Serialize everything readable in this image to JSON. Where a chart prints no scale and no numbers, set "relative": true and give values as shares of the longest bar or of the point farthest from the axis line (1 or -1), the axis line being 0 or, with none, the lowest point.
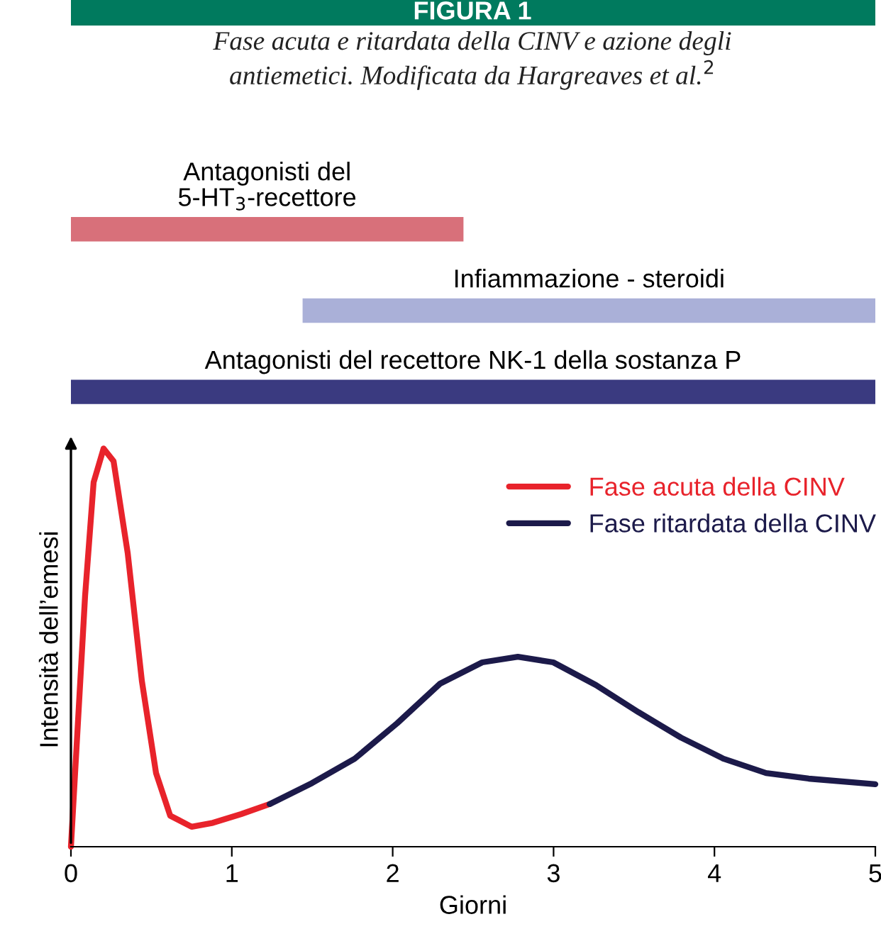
{
  "chart_data": [
    {
      "type": "bar",
      "orientation": "horizontal",
      "title": "FIGURA 1",
      "subtitle": "Fase acuta e ritardata della CINV e azione degli\nantiemetici. Modificata da Hargreaves et al.$^{2}$",
      "categories": [
        null,
        null,
        null
      ],
      "base": [
        0,
        1.44,
        0
      ],
      "values": [
        2.44,
        3.56,
        5
      ],
      "colors": [
        "#d8707a",
        "#aab0d8",
        "#3a3a80"
      ],
      "xlim": [
        0,
        5
      ],
      "tick_labels": false,
      "annotations": [
        "Antagonisti del\n5-HT$_{3}$-recettore",
        "Infiammazione - steroidi",
        "Antagonisti del recettore NK-1 della sostanza P"
      ]
    },
    {
      "type": "line",
      "xlabel": "Giorni",
      "ylabel": "Intensità dell’emesi",
      "relative": true,
      "xlim": [
        0,
        5
      ],
      "xticks": [
        0,
        1,
        2,
        3,
        4,
        5
      ],
      "legend": "top right",
      "marker": "none",
      "line_style": "solid",
      "series": [
        {
          "name": "Fase acuta della CINV",
          "color": "#e8232b",
          "x": [
            0,
            0.088,
            0.141,
            0.203,
            0.265,
            0.353,
            0.441,
            0.529,
            0.617,
            0.75,
            0.882,
            1.058,
            1.235
          ],
          "values": [
            0,
            0.63,
            0.915,
            1,
            0.968,
            0.737,
            0.416,
            0.185,
            0.078,
            0.05,
            0.06,
            0.082,
            0.107
          ]
        },
        {
          "name": "Fase ritardata della CINV",
          "color": "#1c1a4a",
          "x": [
            1.235,
            1.499,
            1.764,
            2.028,
            2.293,
            2.557,
            2.778,
            2.998,
            3.263,
            3.527,
            3.792,
            4.056,
            4.321,
            4.586,
            5
          ],
          "values": [
            0.107,
            0.16,
            0.221,
            0.31,
            0.409,
            0.463,
            0.477,
            0.463,
            0.406,
            0.338,
            0.274,
            0.221,
            0.185,
            0.171,
            0.157
          ]
        }
      ]
    }
  ]
}
